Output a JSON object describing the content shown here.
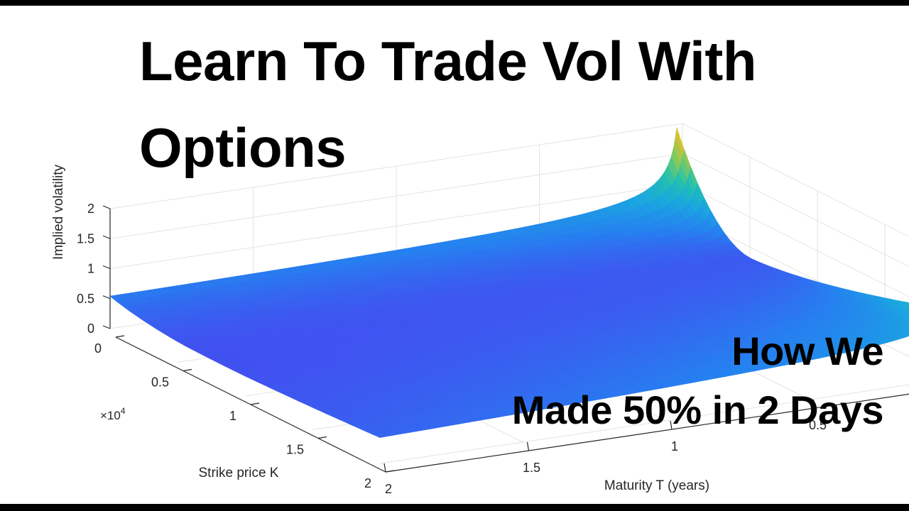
{
  "headline": {
    "line1": "Learn To Trade Vol With",
    "line2": "Options"
  },
  "subheadline": {
    "line1": "How We",
    "line2": "Made 50% in 2 Days"
  },
  "chart_data": {
    "type": "surface",
    "title": "",
    "xlabel": "Strike price K",
    "ylabel": "Maturity T (years)",
    "zlabel": "Implied volatility",
    "x_multiplier": "×10",
    "x_multiplier_exp": "4",
    "xlim": [
      0,
      2
    ],
    "ylim": [
      0,
      2
    ],
    "zlim": [
      0,
      2
    ],
    "x_ticks": [
      "0",
      "0.5",
      "1",
      "1.5",
      "2"
    ],
    "y_ticks": [
      "2",
      "1.5",
      "1",
      "0.5"
    ],
    "z_ticks": [
      "0",
      "0.5",
      "1",
      "1.5",
      "2"
    ],
    "grid": true,
    "colormap": "parula",
    "colormap_stops": [
      "#3e26a8",
      "#4648f0",
      "#2680f0",
      "#1aa7e0",
      "#21c0b0",
      "#79ca61",
      "#d0c039",
      "#f9fb0e"
    ],
    "surface_corners": {
      "K0_Tmax_iv": 0.42,
      "K0_Tmin_iv": 1.95,
      "Kmax_Tmin_iv": 1.05,
      "Kmax_Tmax_iv": 0.25
    },
    "sample_values": [
      {
        "K": 0,
        "T": 2.0,
        "iv": 0.42
      },
      {
        "K": 0,
        "T": 1.0,
        "iv": 0.55
      },
      {
        "K": 0,
        "T": 0.5,
        "iv": 0.75
      },
      {
        "K": 0,
        "T": 0.1,
        "iv": 1.3
      },
      {
        "K": 0,
        "T": 0.02,
        "iv": 1.95
      },
      {
        "K": 0.5,
        "T": 0.02,
        "iv": 0.25
      },
      {
        "K": 1.0,
        "T": 0.02,
        "iv": 0.45
      },
      {
        "K": 1.5,
        "T": 0.02,
        "iv": 0.85
      },
      {
        "K": 2.0,
        "T": 0.02,
        "iv": 1.05
      },
      {
        "K": 2.0,
        "T": 1.0,
        "iv": 0.4
      },
      {
        "K": 2.0,
        "T": 2.0,
        "iv": 0.25
      },
      {
        "K": 1.0,
        "T": 1.0,
        "iv": 0.2
      }
    ]
  }
}
